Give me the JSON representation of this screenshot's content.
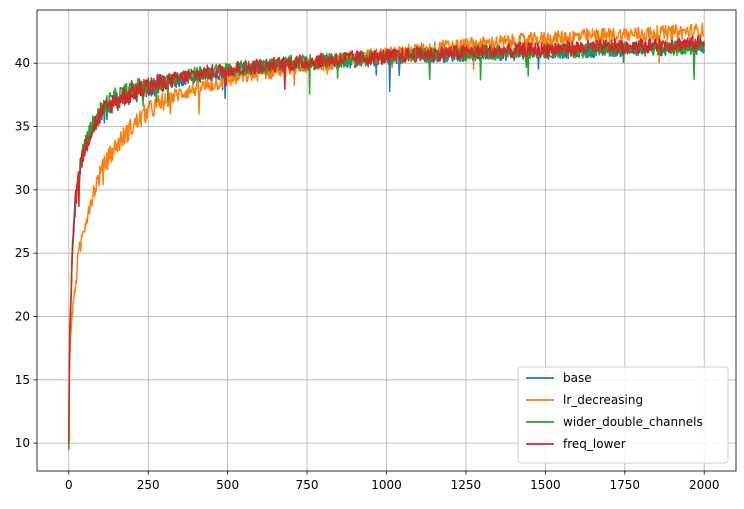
{
  "chart_data": {
    "type": "line",
    "title": "",
    "xlabel": "",
    "ylabel": "",
    "xlim": [
      -100,
      2100
    ],
    "ylim": [
      7.8,
      44.2
    ],
    "xticks": [
      0,
      250,
      500,
      750,
      1000,
      1250,
      1500,
      1750,
      2000
    ],
    "yticks": [
      10,
      15,
      20,
      25,
      30,
      35,
      40
    ],
    "grid": true,
    "legend_position": "lower-right",
    "series": [
      {
        "name": "base",
        "color": "#1f77b4",
        "x": [
          0,
          2,
          5,
          10,
          15,
          20,
          30,
          40,
          50,
          60,
          70,
          80,
          100,
          120,
          150,
          200,
          250,
          300,
          350,
          400,
          450,
          500,
          600,
          700,
          800,
          900,
          1000,
          1100,
          1200,
          1300,
          1400,
          1500,
          1600,
          1700,
          1800,
          1900,
          2000
        ],
        "y": [
          10.0,
          16.5,
          19.5,
          24.0,
          26.5,
          28.5,
          30.5,
          32.0,
          33.2,
          33.8,
          34.5,
          35.0,
          35.8,
          36.5,
          37.0,
          37.6,
          38.0,
          38.4,
          38.7,
          39.0,
          39.2,
          39.3,
          39.6,
          39.9,
          40.1,
          40.2,
          40.4,
          40.6,
          40.7,
          40.8,
          40.8,
          40.9,
          41.0,
          41.1,
          41.1,
          41.2,
          41.3
        ]
      },
      {
        "name": "lr_decreasing",
        "color": "#ff7f0e",
        "x": [
          0,
          2,
          5,
          10,
          15,
          20,
          30,
          40,
          50,
          60,
          70,
          80,
          100,
          120,
          150,
          200,
          250,
          300,
          350,
          400,
          450,
          500,
          600,
          700,
          800,
          900,
          1000,
          1100,
          1200,
          1300,
          1400,
          1500,
          1600,
          1700,
          1800,
          1900,
          2000
        ],
        "y": [
          9.8,
          15.0,
          18.0,
          20.0,
          21.2,
          22.5,
          24.5,
          26.0,
          27.3,
          28.3,
          29.2,
          30.0,
          31.3,
          32.3,
          33.5,
          35.0,
          36.2,
          37.0,
          37.6,
          38.0,
          38.3,
          38.7,
          39.2,
          39.6,
          40.0,
          40.4,
          40.7,
          41.0,
          41.3,
          41.5,
          41.7,
          41.9,
          42.1,
          42.2,
          42.3,
          42.4,
          42.6
        ]
      },
      {
        "name": "wider_double_channels",
        "color": "#2ca02c",
        "x": [
          0,
          2,
          5,
          10,
          15,
          20,
          30,
          40,
          50,
          60,
          70,
          80,
          100,
          120,
          150,
          200,
          250,
          300,
          350,
          400,
          450,
          500,
          600,
          700,
          800,
          900,
          1000,
          1100,
          1200,
          1300,
          1400,
          1500,
          1600,
          1700,
          1800,
          1900,
          2000
        ],
        "y": [
          9.6,
          16.8,
          20.0,
          24.5,
          27.0,
          29.0,
          31.0,
          32.3,
          33.5,
          34.2,
          34.8,
          35.3,
          36.2,
          36.8,
          37.3,
          37.9,
          38.3,
          38.6,
          38.9,
          39.1,
          39.3,
          39.5,
          39.7,
          40.0,
          40.2,
          40.3,
          40.5,
          40.6,
          40.7,
          40.8,
          40.9,
          41.0,
          41.0,
          41.1,
          41.2,
          41.2,
          41.3
        ]
      },
      {
        "name": "freq_lower",
        "color": "#d62728",
        "x": [
          0,
          2,
          5,
          10,
          15,
          20,
          30,
          40,
          50,
          60,
          70,
          80,
          100,
          120,
          150,
          200,
          250,
          300,
          350,
          400,
          450,
          500,
          600,
          700,
          800,
          900,
          1000,
          1100,
          1200,
          1300,
          1400,
          1500,
          1600,
          1700,
          1800,
          1900,
          2000
        ],
        "y": [
          10.0,
          17.0,
          20.5,
          24.8,
          27.2,
          29.0,
          31.0,
          32.2,
          33.3,
          34.0,
          34.6,
          35.1,
          35.9,
          36.5,
          37.1,
          37.7,
          38.1,
          38.5,
          38.8,
          39.1,
          39.3,
          39.5,
          39.8,
          40.0,
          40.2,
          40.4,
          40.5,
          40.7,
          40.8,
          40.9,
          41.0,
          41.1,
          41.2,
          41.3,
          41.4,
          41.5,
          41.6
        ]
      }
    ]
  }
}
